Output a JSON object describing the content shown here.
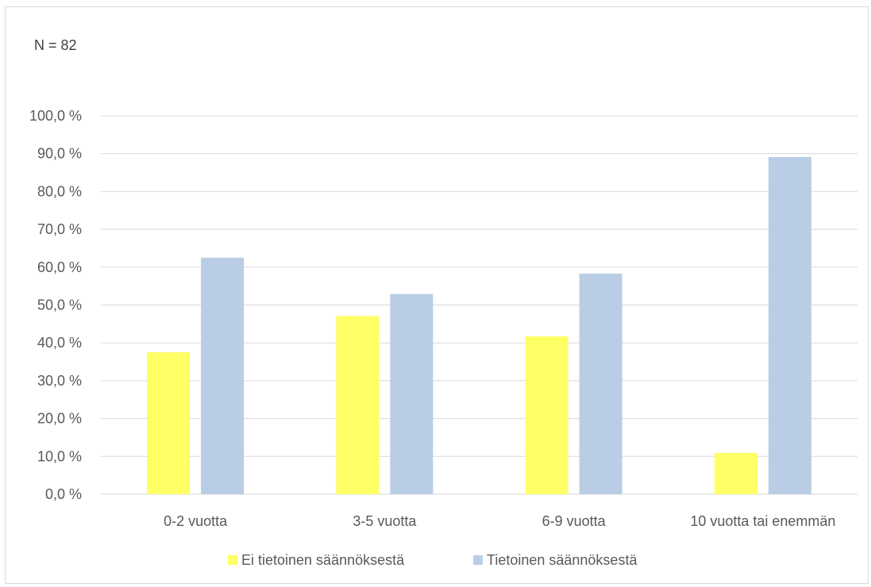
{
  "annotation": "N = 82",
  "chart_data": {
    "type": "bar",
    "title": "",
    "xlabel": "",
    "ylabel": "",
    "categories": [
      "0-2 vuotta",
      "3-5 vuotta",
      "6-9 vuotta",
      "10 vuotta tai enemmän"
    ],
    "series": [
      {
        "name": "Ei tietoinen säännöksestä",
        "values": [
          37.5,
          47.1,
          41.7,
          10.9
        ]
      },
      {
        "name": "Tietoinen säännöksestä",
        "values": [
          62.5,
          52.9,
          58.3,
          89.1
        ]
      }
    ],
    "ylim": [
      0,
      100
    ],
    "ytick_step": 10,
    "ytick_labels": [
      "0,0 %",
      "10,0 %",
      "20,0 %",
      "30,0 %",
      "40,0 %",
      "50,0 %",
      "60,0 %",
      "70,0 %",
      "80,0 %",
      "90,0 %",
      "100,0 %"
    ],
    "grid": true,
    "legend_position": "bottom",
    "colors": [
      "#ffff66",
      "#b9cde5"
    ],
    "gridline_color": "#d9d9d9"
  }
}
